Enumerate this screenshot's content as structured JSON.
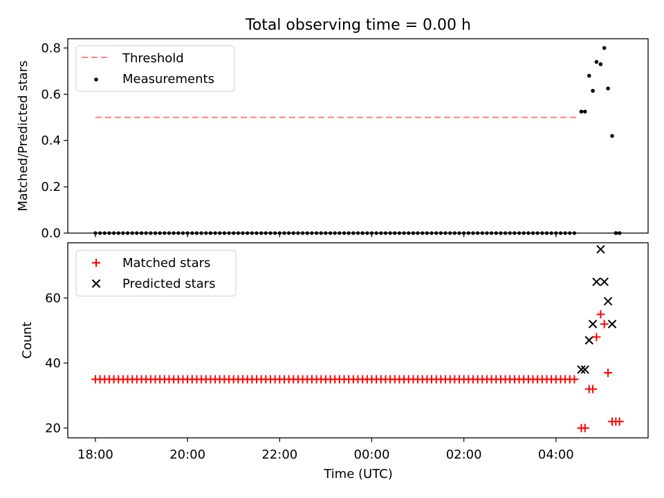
{
  "chart_data": {
    "title": "Total observing time = 0.00 h",
    "xlabel": "Time (UTC)",
    "x_unit": "hours after 18:00 UTC",
    "xlim": [
      -0.6,
      12.0
    ],
    "xtick_values": [
      0,
      2,
      4,
      6,
      8,
      10
    ],
    "xtick_labels": [
      "18:00",
      "20:00",
      "22:00",
      "00:00",
      "02:00",
      "04:00"
    ],
    "colors": {
      "threshold": "#ff7f7f",
      "measurements": "#000000",
      "matched": "#ff0000",
      "predicted": "#000000"
    },
    "panels": [
      {
        "type": "scatter",
        "ylabel": "Matched/Predicted stars",
        "ylim": [
          0.0,
          0.84
        ],
        "yticks": [
          0.0,
          0.2,
          0.4,
          0.6,
          0.8
        ],
        "ytick_labels": [
          "0.0",
          "0.2",
          "0.4",
          "0.6",
          "0.8"
        ],
        "legend_position": "top-left",
        "legend": [
          "Threshold",
          "Measurements"
        ],
        "threshold": {
          "name": "Threshold",
          "y": 0.5,
          "x_range": [
            0.0,
            10.5
          ]
        },
        "baseline_points": {
          "x_start": 0.0,
          "x_end": 10.45,
          "step": 0.1,
          "y": 0.0
        },
        "measurements": {
          "name": "Measurements",
          "x": [
            10.55,
            10.63,
            10.72,
            10.8,
            10.88,
            10.97,
            11.05,
            11.13,
            11.22,
            11.3,
            11.38
          ],
          "y": [
            0.525,
            0.525,
            0.68,
            0.615,
            0.74,
            0.73,
            0.8,
            0.625,
            0.42,
            0.0,
            0.0
          ]
        }
      },
      {
        "type": "scatter",
        "ylabel": "Count",
        "ylim": [
          17,
          77
        ],
        "yticks": [
          20,
          40,
          60
        ],
        "ytick_labels": [
          "20",
          "40",
          "60"
        ],
        "legend_position": "top-left",
        "legend": [
          "Matched stars",
          "Predicted stars"
        ],
        "baseline_points": {
          "x_start": 0.0,
          "x_end": 10.45,
          "step": 0.1,
          "y": 35
        },
        "matched": {
          "name": "Matched stars",
          "x": [
            10.55,
            10.63,
            10.72,
            10.8,
            10.88,
            10.97,
            11.05,
            11.13,
            11.22,
            11.3,
            11.38
          ],
          "y": [
            20,
            20,
            32,
            32,
            48,
            55,
            52,
            37,
            22,
            22,
            22
          ]
        },
        "predicted": {
          "name": "Predicted stars",
          "x": [
            10.55,
            10.63,
            10.72,
            10.8,
            10.88,
            10.97,
            11.05,
            11.13,
            11.22
          ],
          "y": [
            38,
            38,
            47,
            52,
            65,
            75,
            65,
            59,
            52
          ]
        }
      }
    ]
  }
}
